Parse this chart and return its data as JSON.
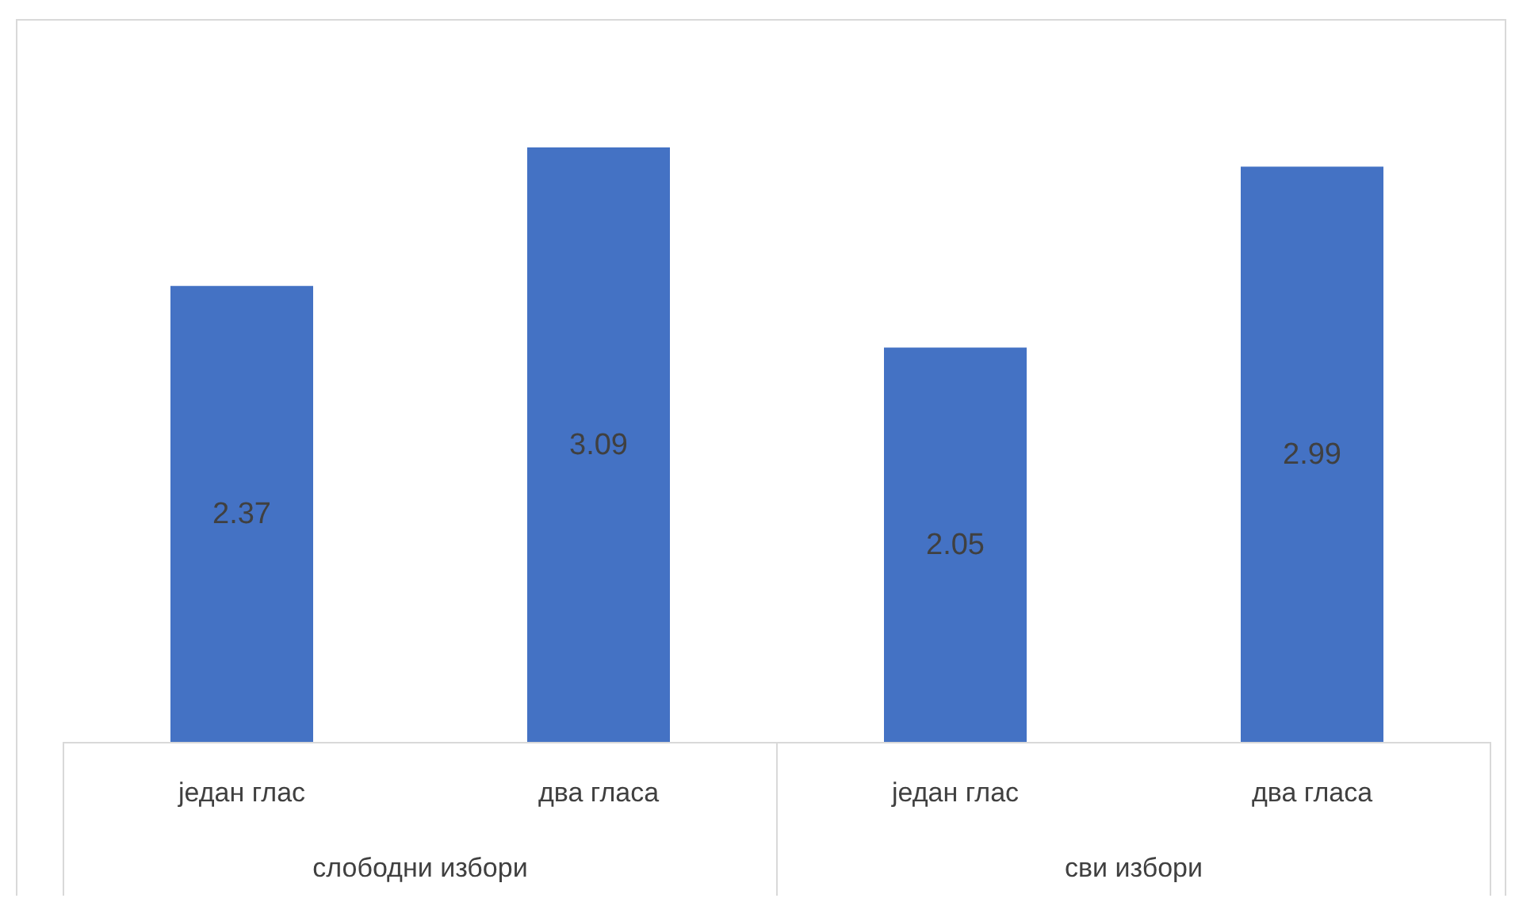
{
  "chart_data": {
    "type": "bar",
    "categories": [
      "један глас",
      "два гласа",
      "један глас",
      "два гласа"
    ],
    "values": [
      2.37,
      3.09,
      2.05,
      2.99
    ],
    "color": "#4472c4",
    "data_labels": true,
    "annotations": [
      "слободни избори",
      "сви избори"
    ]
  }
}
